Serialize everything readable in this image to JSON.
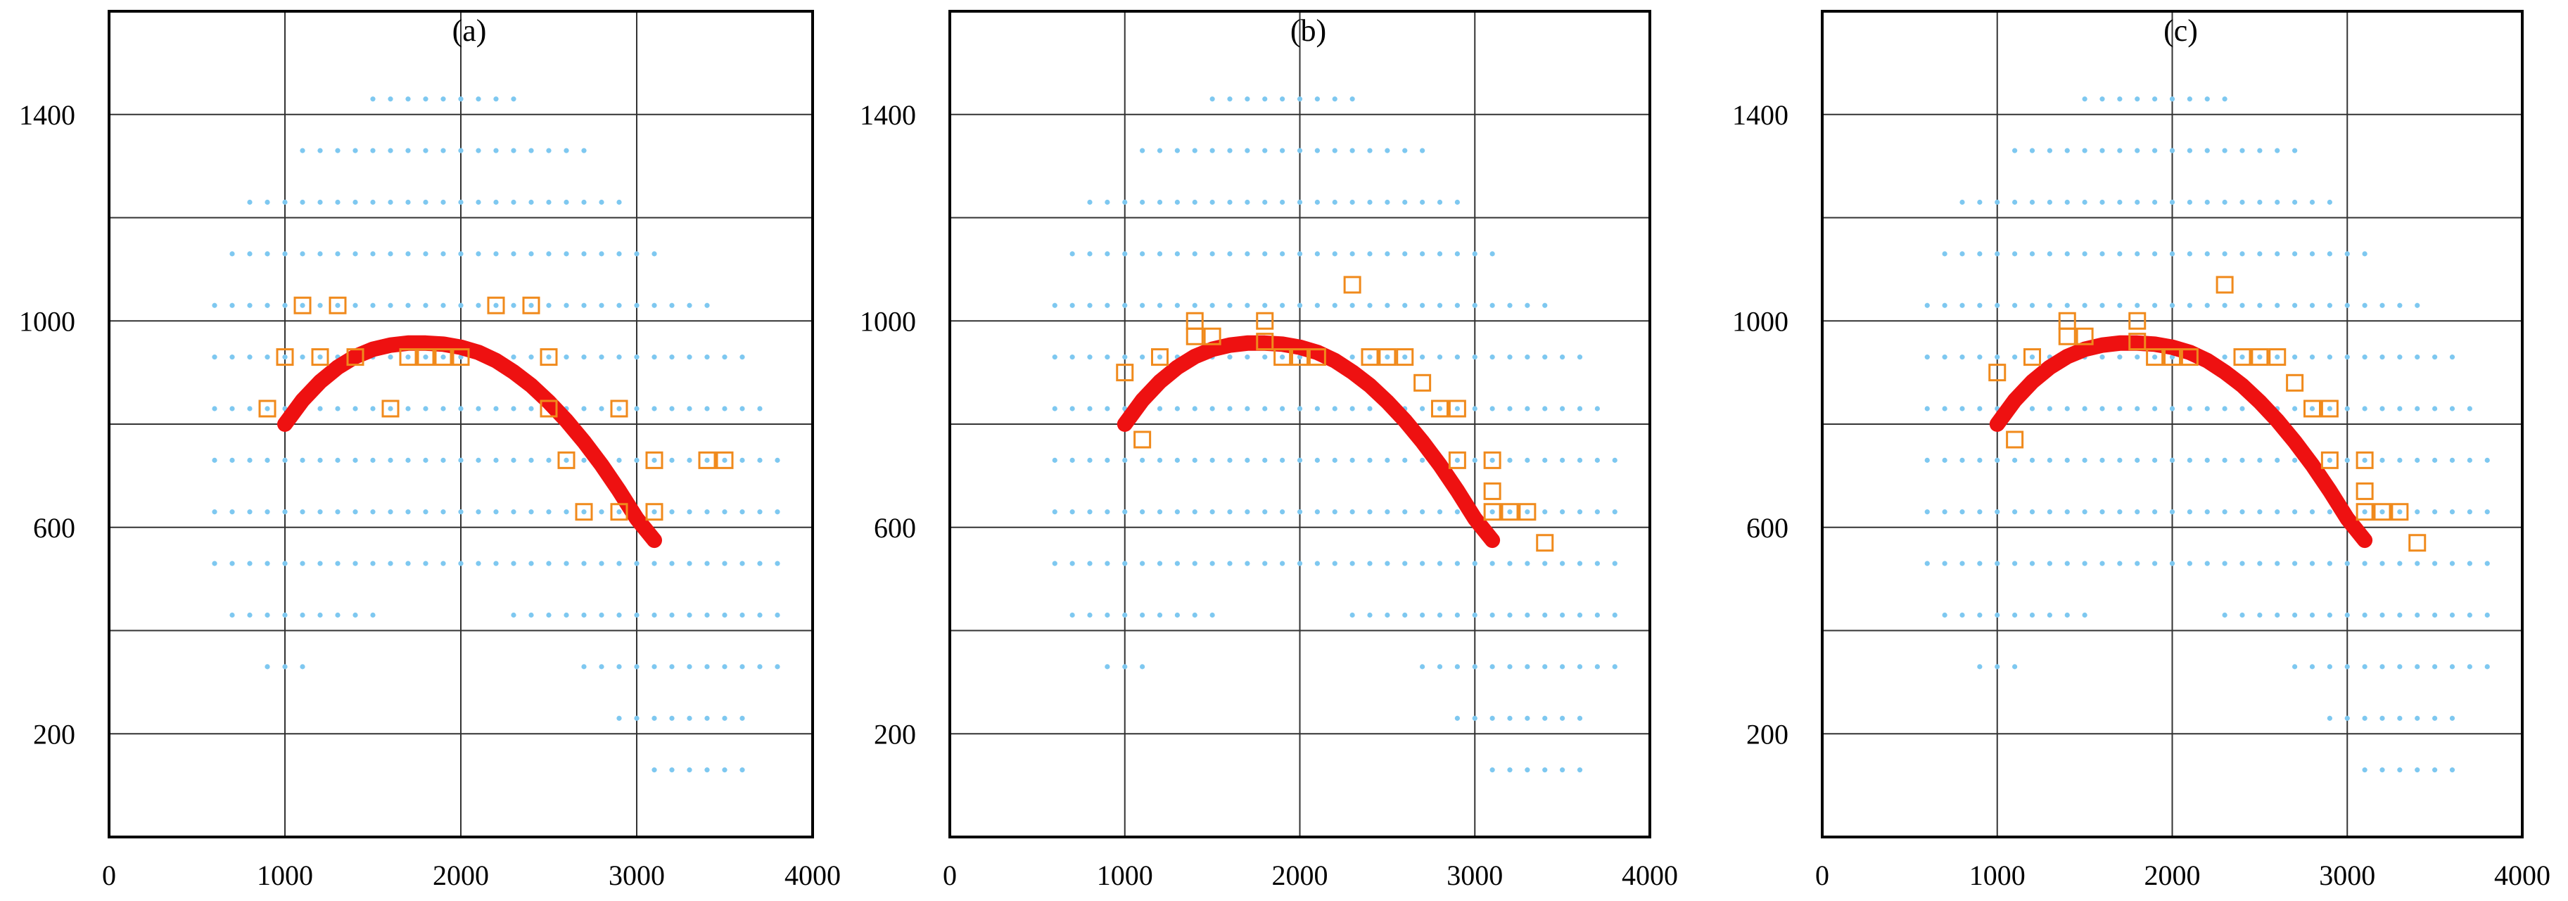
{
  "chart_data": [
    {
      "type": "scatter",
      "title": "(a)",
      "xlim": [
        0,
        4000
      ],
      "ylim": [
        0,
        1600
      ],
      "x_ticks": [
        0,
        1000,
        2000,
        3000,
        4000
      ],
      "y_ticks": [
        200,
        600,
        1000,
        1400
      ],
      "x_tick_labels": [
        "0",
        "1000",
        "2000",
        "3000",
        "4000"
      ],
      "y_tick_labels": [
        "200",
        "600",
        "1000",
        "1400"
      ],
      "x_grid": [
        1000,
        2000,
        3000
      ],
      "y_grid": [
        200,
        400,
        600,
        800,
        1000,
        1200,
        1400
      ],
      "colors": {
        "grid_points": "#7ec8f0",
        "samples": "#f08a1c",
        "curve": "#ee1111"
      },
      "grid_rows": [
        {
          "y": 1430,
          "x_start": 1500,
          "x_end": 2300
        },
        {
          "y": 1330,
          "x_start": 1100,
          "x_end": 2700
        },
        {
          "y": 1230,
          "x_start": 800,
          "x_end": 2900
        },
        {
          "y": 1130,
          "x_start": 700,
          "x_end": 3100
        },
        {
          "y": 1030,
          "x_start": 600,
          "x_end": 3400
        },
        {
          "y": 930,
          "x_start": 600,
          "x_end": 3600
        },
        {
          "y": 830,
          "x_start": 600,
          "x_end": 3700
        },
        {
          "y": 730,
          "x_start": 600,
          "x_end": 3800
        },
        {
          "y": 630,
          "x_start": 600,
          "x_end": 3800
        },
        {
          "y": 530,
          "x_start": 600,
          "x_end": 3800
        },
        {
          "y": 430,
          "x_start": 700,
          "x_end": 1500
        },
        {
          "y": 430,
          "x_start": 2300,
          "x_end": 3800
        },
        {
          "y": 330,
          "x_start": 900,
          "x_end": 1100
        },
        {
          "y": 330,
          "x_start": 2700,
          "x_end": 3800
        },
        {
          "y": 230,
          "x_start": 2900,
          "x_end": 3600
        },
        {
          "y": 130,
          "x_start": 3100,
          "x_end": 3600
        }
      ],
      "grid_step": 100,
      "samples": [
        [
          900,
          830
        ],
        [
          1000,
          930
        ],
        [
          1100,
          1030
        ],
        [
          1200,
          930
        ],
        [
          1300,
          1030
        ],
        [
          1400,
          930
        ],
        [
          1600,
          830
        ],
        [
          1700,
          930
        ],
        [
          1800,
          930
        ],
        [
          1900,
          930
        ],
        [
          2000,
          930
        ],
        [
          2200,
          1030
        ],
        [
          2400,
          1030
        ],
        [
          2500,
          930
        ],
        [
          2500,
          830
        ],
        [
          2600,
          730
        ],
        [
          2700,
          630
        ],
        [
          2900,
          830
        ],
        [
          2900,
          630
        ],
        [
          3100,
          730
        ],
        [
          3100,
          630
        ],
        [
          3400,
          730
        ],
        [
          3500,
          730
        ]
      ],
      "curve": [
        [
          1000,
          800
        ],
        [
          1100,
          846
        ],
        [
          1200,
          882
        ],
        [
          1300,
          910
        ],
        [
          1400,
          931
        ],
        [
          1500,
          945
        ],
        [
          1600,
          953
        ],
        [
          1700,
          957
        ],
        [
          1800,
          957
        ],
        [
          1900,
          955
        ],
        [
          2000,
          949
        ],
        [
          2100,
          939
        ],
        [
          2200,
          923
        ],
        [
          2300,
          901
        ],
        [
          2400,
          875
        ],
        [
          2500,
          843
        ],
        [
          2600,
          807
        ],
        [
          2700,
          766
        ],
        [
          2800,
          721
        ],
        [
          2900,
          671
        ],
        [
          3000,
          617
        ],
        [
          3100,
          575
        ]
      ]
    },
    {
      "type": "scatter",
      "title": "(b)",
      "xlim": [
        0,
        4000
      ],
      "ylim": [
        0,
        1600
      ],
      "x_ticks": [
        0,
        1000,
        2000,
        3000,
        4000
      ],
      "y_ticks": [
        200,
        600,
        1000,
        1400
      ],
      "x_tick_labels": [
        "0",
        "1000",
        "2000",
        "3000",
        "4000"
      ],
      "y_tick_labels": [
        "200",
        "600",
        "1000",
        "1400"
      ],
      "x_grid": [
        1000,
        2000,
        3000
      ],
      "y_grid": [
        200,
        400,
        600,
        800,
        1000,
        1200,
        1400
      ],
      "colors": {
        "grid_points": "#7ec8f0",
        "samples": "#f08a1c",
        "curve": "#ee1111"
      },
      "grid_rows": [
        {
          "y": 1430,
          "x_start": 1500,
          "x_end": 2300
        },
        {
          "y": 1330,
          "x_start": 1100,
          "x_end": 2700
        },
        {
          "y": 1230,
          "x_start": 800,
          "x_end": 2900
        },
        {
          "y": 1130,
          "x_start": 700,
          "x_end": 3100
        },
        {
          "y": 1030,
          "x_start": 600,
          "x_end": 3400
        },
        {
          "y": 930,
          "x_start": 600,
          "x_end": 3600
        },
        {
          "y": 830,
          "x_start": 600,
          "x_end": 3700
        },
        {
          "y": 730,
          "x_start": 600,
          "x_end": 3800
        },
        {
          "y": 630,
          "x_start": 600,
          "x_end": 3800
        },
        {
          "y": 530,
          "x_start": 600,
          "x_end": 3800
        },
        {
          "y": 430,
          "x_start": 700,
          "x_end": 1500
        },
        {
          "y": 430,
          "x_start": 2300,
          "x_end": 3800
        },
        {
          "y": 330,
          "x_start": 900,
          "x_end": 1100
        },
        {
          "y": 330,
          "x_start": 2700,
          "x_end": 3800
        },
        {
          "y": 230,
          "x_start": 2900,
          "x_end": 3600
        },
        {
          "y": 130,
          "x_start": 3100,
          "x_end": 3600
        }
      ],
      "grid_step": 100,
      "samples": [
        [
          1000,
          900
        ],
        [
          1100,
          770
        ],
        [
          1200,
          930
        ],
        [
          1400,
          970
        ],
        [
          1400,
          1000
        ],
        [
          1500,
          970
        ],
        [
          1800,
          1000
        ],
        [
          1800,
          960
        ],
        [
          1900,
          930
        ],
        [
          2000,
          930
        ],
        [
          2100,
          930
        ],
        [
          2300,
          1070
        ],
        [
          2400,
          930
        ],
        [
          2500,
          930
        ],
        [
          2600,
          930
        ],
        [
          2700,
          880
        ],
        [
          2800,
          830
        ],
        [
          2900,
          730
        ],
        [
          2900,
          830
        ],
        [
          3100,
          730
        ],
        [
          3100,
          670
        ],
        [
          3100,
          630
        ],
        [
          3200,
          630
        ],
        [
          3300,
          630
        ],
        [
          3400,
          570
        ]
      ],
      "curve": [
        [
          1000,
          800
        ],
        [
          1100,
          846
        ],
        [
          1200,
          882
        ],
        [
          1300,
          910
        ],
        [
          1400,
          931
        ],
        [
          1500,
          945
        ],
        [
          1600,
          953
        ],
        [
          1700,
          957
        ],
        [
          1800,
          957
        ],
        [
          1900,
          955
        ],
        [
          2000,
          949
        ],
        [
          2100,
          939
        ],
        [
          2200,
          923
        ],
        [
          2300,
          901
        ],
        [
          2400,
          875
        ],
        [
          2500,
          843
        ],
        [
          2600,
          807
        ],
        [
          2700,
          766
        ],
        [
          2800,
          721
        ],
        [
          2900,
          671
        ],
        [
          3000,
          617
        ],
        [
          3100,
          575
        ]
      ]
    },
    {
      "type": "scatter",
      "title": "(c)",
      "xlim": [
        0,
        4000
      ],
      "ylim": [
        0,
        1600
      ],
      "x_ticks": [
        0,
        1000,
        2000,
        3000,
        4000
      ],
      "y_ticks": [
        200,
        600,
        1000,
        1400
      ],
      "x_tick_labels": [
        "0",
        "1000",
        "2000",
        "3000",
        "4000"
      ],
      "y_tick_labels": [
        "200",
        "600",
        "1000",
        "1400"
      ],
      "x_grid": [
        1000,
        2000,
        3000
      ],
      "y_grid": [
        200,
        400,
        600,
        800,
        1000,
        1200,
        1400
      ],
      "colors": {
        "grid_points": "#7ec8f0",
        "samples": "#f08a1c",
        "curve": "#ee1111"
      },
      "grid_rows": [
        {
          "y": 1430,
          "x_start": 1500,
          "x_end": 2300
        },
        {
          "y": 1330,
          "x_start": 1100,
          "x_end": 2700
        },
        {
          "y": 1230,
          "x_start": 800,
          "x_end": 2900
        },
        {
          "y": 1130,
          "x_start": 700,
          "x_end": 3100
        },
        {
          "y": 1030,
          "x_start": 600,
          "x_end": 3400
        },
        {
          "y": 930,
          "x_start": 600,
          "x_end": 3600
        },
        {
          "y": 830,
          "x_start": 600,
          "x_end": 3700
        },
        {
          "y": 730,
          "x_start": 600,
          "x_end": 3800
        },
        {
          "y": 630,
          "x_start": 600,
          "x_end": 3800
        },
        {
          "y": 530,
          "x_start": 600,
          "x_end": 3800
        },
        {
          "y": 430,
          "x_start": 700,
          "x_end": 1500
        },
        {
          "y": 430,
          "x_start": 2300,
          "x_end": 3800
        },
        {
          "y": 330,
          "x_start": 900,
          "x_end": 1100
        },
        {
          "y": 330,
          "x_start": 2700,
          "x_end": 3800
        },
        {
          "y": 230,
          "x_start": 2900,
          "x_end": 3600
        },
        {
          "y": 130,
          "x_start": 3100,
          "x_end": 3600
        }
      ],
      "grid_step": 100,
      "samples": [
        [
          1000,
          900
        ],
        [
          1100,
          770
        ],
        [
          1200,
          930
        ],
        [
          1400,
          970
        ],
        [
          1400,
          1000
        ],
        [
          1500,
          970
        ],
        [
          1800,
          1000
        ],
        [
          1800,
          960
        ],
        [
          1900,
          930
        ],
        [
          2000,
          930
        ],
        [
          2100,
          930
        ],
        [
          2300,
          1070
        ],
        [
          2400,
          930
        ],
        [
          2500,
          930
        ],
        [
          2600,
          930
        ],
        [
          2700,
          880
        ],
        [
          2800,
          830
        ],
        [
          2900,
          730
        ],
        [
          2900,
          830
        ],
        [
          3100,
          730
        ],
        [
          3100,
          670
        ],
        [
          3100,
          630
        ],
        [
          3200,
          630
        ],
        [
          3300,
          630
        ],
        [
          3400,
          570
        ]
      ],
      "curve": [
        [
          1000,
          800
        ],
        [
          1100,
          846
        ],
        [
          1200,
          882
        ],
        [
          1300,
          910
        ],
        [
          1400,
          931
        ],
        [
          1500,
          945
        ],
        [
          1600,
          953
        ],
        [
          1700,
          957
        ],
        [
          1800,
          957
        ],
        [
          1900,
          955
        ],
        [
          2000,
          949
        ],
        [
          2100,
          939
        ],
        [
          2200,
          923
        ],
        [
          2300,
          901
        ],
        [
          2400,
          875
        ],
        [
          2500,
          843
        ],
        [
          2600,
          807
        ],
        [
          2700,
          766
        ],
        [
          2800,
          721
        ],
        [
          2900,
          671
        ],
        [
          3000,
          617
        ],
        [
          3100,
          575
        ]
      ]
    }
  ]
}
